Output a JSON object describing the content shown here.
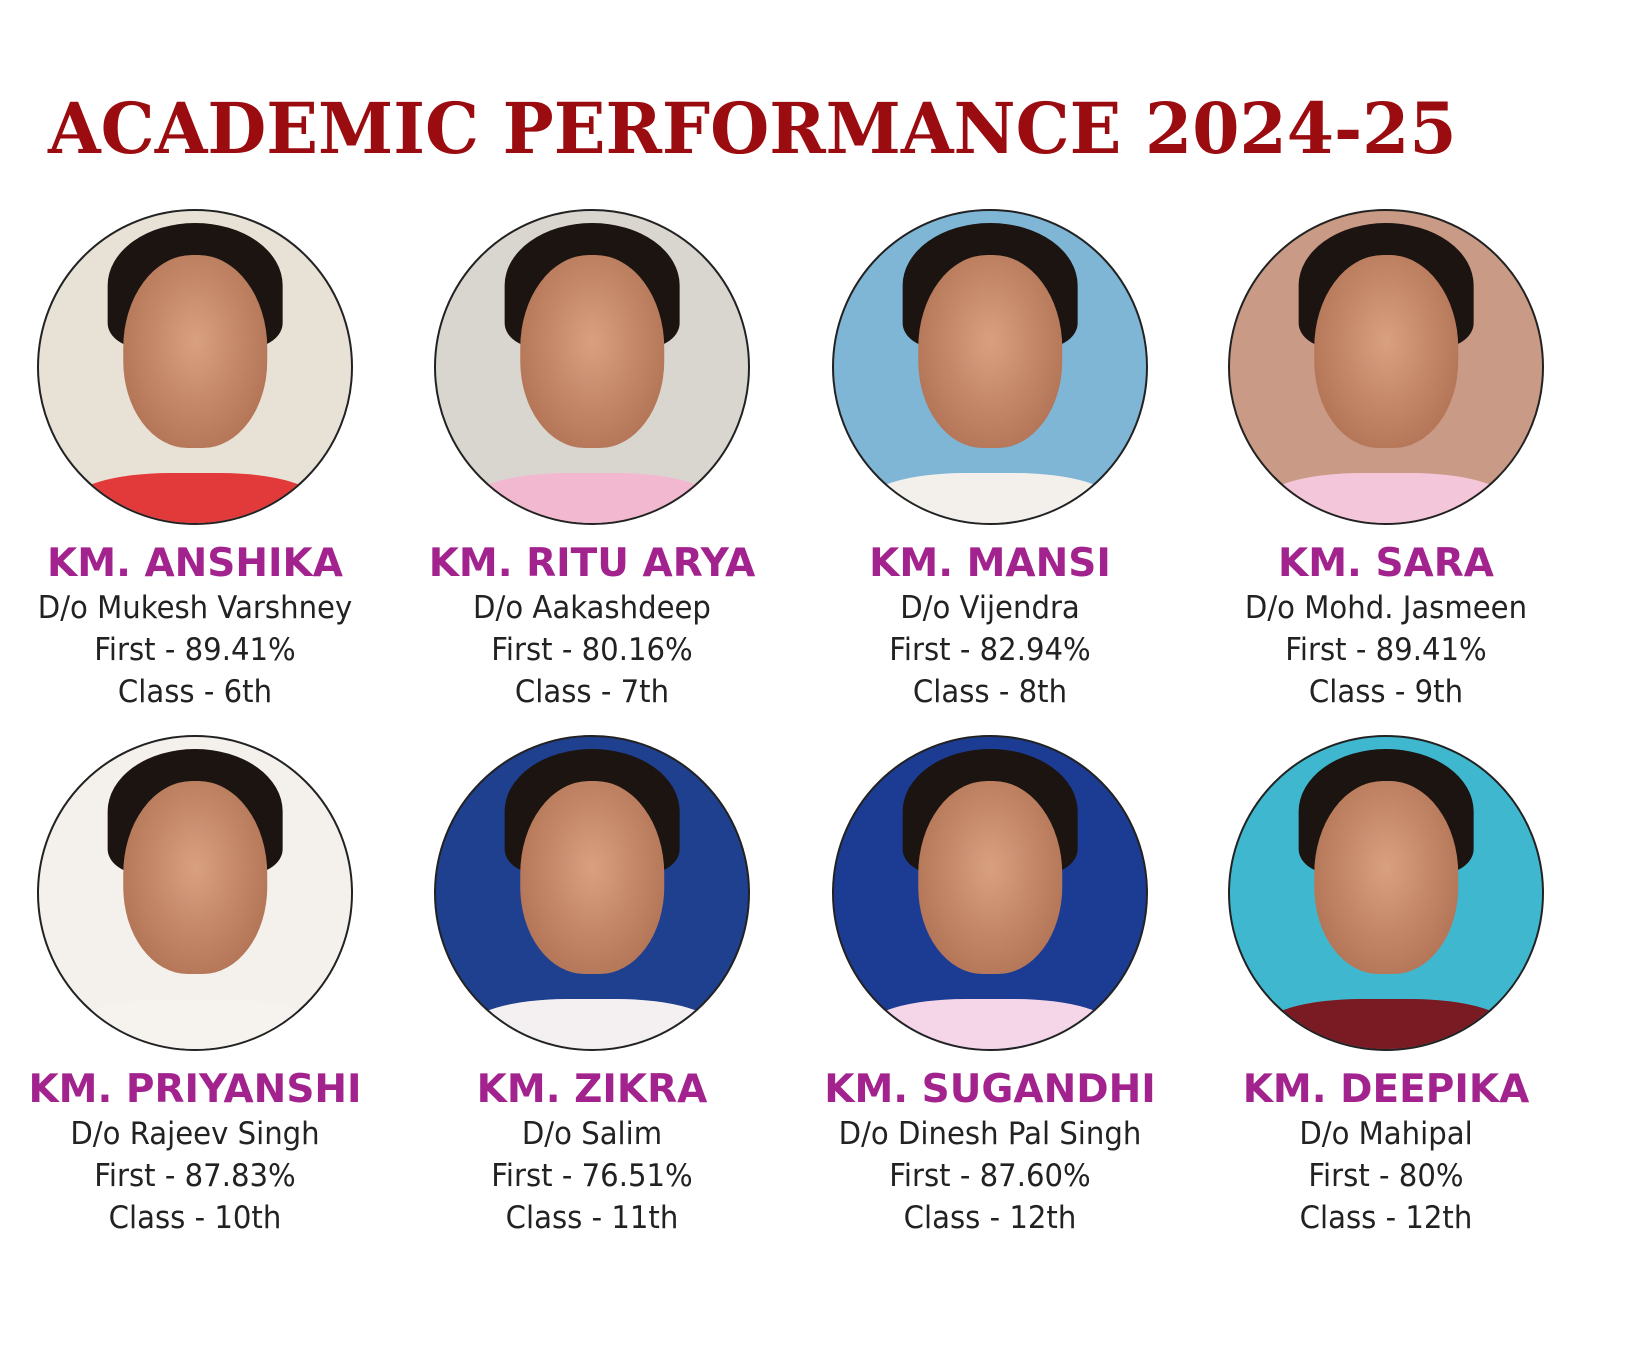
{
  "title": "ACADEMIC PERFORMANCE 2024-25",
  "students": [
    {
      "name": "KM. ANSHIKA",
      "parent": "D/o Mukesh Varshney",
      "result": "First - 89.41%",
      "class": "Class - 6th",
      "photo_bg": "#e8e2d6",
      "shirt": "#e23a3a"
    },
    {
      "name": "KM. RITU ARYA",
      "parent": "D/o Aakashdeep",
      "result": "First - 80.16%",
      "class": "Class - 7th",
      "photo_bg": "#d9d6cf",
      "shirt": "#f2b8d0"
    },
    {
      "name": "KM. MANSI",
      "parent": "D/o Vijendra",
      "result": "First - 82.94%",
      "class": "Class - 8th",
      "photo_bg": "#7fb6d6",
      "shirt": "#f3f0ec"
    },
    {
      "name": "KM. SARA",
      "parent": "D/o Mohd. Jasmeen",
      "result": "First - 89.41%",
      "class": "Class - 9th",
      "photo_bg": "#c99a85",
      "shirt": "#f4c6da"
    },
    {
      "name": "KM. PRIYANSHI",
      "parent": "D/o Rajeev Singh",
      "result": "First - 87.83%",
      "class": "Class - 10th",
      "photo_bg": "#f4f1ec",
      "shirt": "#f6f2ee"
    },
    {
      "name": "KM. ZIKRA",
      "parent": "D/o Salim",
      "result": "First - 76.51%",
      "class": "Class - 11th",
      "photo_bg": "#1f3f8f",
      "shirt": "#f4f0f2"
    },
    {
      "name": "KM. SUGANDHI",
      "parent": "D/o Dinesh Pal Singh",
      "result": "First - 87.60%",
      "class": "Class - 12th",
      "photo_bg": "#1c3c93",
      "shirt": "#f4d6e8"
    },
    {
      "name": "KM. DEEPIKA",
      "parent": "D/o Mahipal",
      "result": "First - 80%",
      "class": "Class - 12th",
      "photo_bg": "#3fb8cf",
      "shirt": "#7a1a22"
    }
  ],
  "colors": {
    "title": "#9b0c10",
    "name": "#a3238e",
    "text": "#222222"
  }
}
